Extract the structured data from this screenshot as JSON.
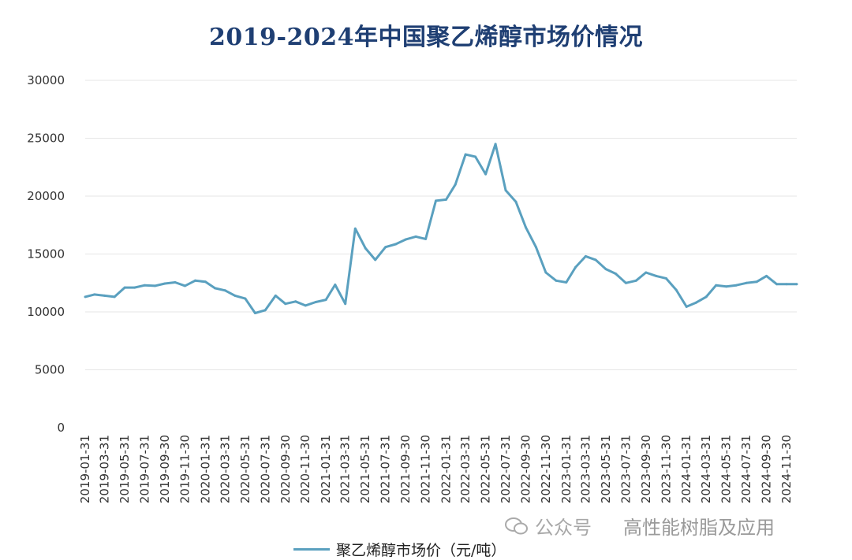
{
  "chart_data": {
    "type": "line",
    "title": "2019-2024年中国聚乙烯醇市场价情况",
    "xlabel": "",
    "ylabel": "",
    "ylim": [
      0,
      30000
    ],
    "yticks": [
      0,
      5000,
      10000,
      15000,
      20000,
      25000,
      30000
    ],
    "grid": true,
    "legend_position": "bottom",
    "x_tick_labels": [
      "2019-01-31",
      "2019-03-31",
      "2019-05-31",
      "2019-07-31",
      "2019-09-30",
      "2019-11-30",
      "2020-01-31",
      "2020-03-31",
      "2020-05-31",
      "2020-07-31",
      "2020-09-30",
      "2020-11-30",
      "2021-01-31",
      "2021-03-31",
      "2021-05-31",
      "2021-07-31",
      "2021-09-30",
      "2021-11-30",
      "2022-01-31",
      "2022-03-31",
      "2022-05-31",
      "2022-07-31",
      "2022-09-30",
      "2022-11-30",
      "2023-01-31",
      "2023-03-31",
      "2023-05-31",
      "2023-07-31",
      "2023-09-30",
      "2023-11-30",
      "2024-01-31",
      "2024-03-31",
      "2024-05-31",
      "2024-07-31",
      "2024-09-30",
      "2024-11-30"
    ],
    "series": [
      {
        "name": "聚乙烯醇市场价（元/吨）",
        "color": "#5aa0bf",
        "x": [
          "2019-01-31",
          "2019-02-28",
          "2019-03-31",
          "2019-04-30",
          "2019-05-31",
          "2019-06-30",
          "2019-07-31",
          "2019-08-31",
          "2019-09-30",
          "2019-10-31",
          "2019-11-30",
          "2019-12-31",
          "2020-01-31",
          "2020-02-29",
          "2020-03-31",
          "2020-04-30",
          "2020-05-31",
          "2020-06-30",
          "2020-07-31",
          "2020-08-31",
          "2020-09-30",
          "2020-10-31",
          "2020-11-30",
          "2020-12-31",
          "2021-01-31",
          "2021-02-28",
          "2021-03-31",
          "2021-04-30",
          "2021-05-31",
          "2021-06-30",
          "2021-07-31",
          "2021-08-31",
          "2021-09-30",
          "2021-10-31",
          "2021-11-30",
          "2021-12-31",
          "2022-01-31",
          "2022-02-28",
          "2022-03-31",
          "2022-04-30",
          "2022-05-31",
          "2022-06-30",
          "2022-07-31",
          "2022-08-31",
          "2022-09-30",
          "2022-10-31",
          "2022-11-30",
          "2022-12-31",
          "2023-01-31",
          "2023-02-28",
          "2023-03-31",
          "2023-04-30",
          "2023-05-31",
          "2023-06-30",
          "2023-07-31",
          "2023-08-31",
          "2023-09-30",
          "2023-10-31",
          "2023-11-30",
          "2023-12-31",
          "2024-01-31",
          "2024-02-29",
          "2024-03-31",
          "2024-04-30",
          "2024-05-31",
          "2024-06-30",
          "2024-07-31",
          "2024-08-31",
          "2024-09-30",
          "2024-10-31",
          "2024-11-30",
          "2024-12-31"
        ],
        "values": [
          11300,
          11500,
          11400,
          11300,
          12100,
          12100,
          12300,
          12250,
          12450,
          12550,
          12250,
          12700,
          12600,
          12050,
          11850,
          11400,
          11150,
          9900,
          10150,
          11400,
          10700,
          10900,
          10550,
          10850,
          11050,
          12350,
          10700,
          17200,
          15500,
          14500,
          15600,
          15850,
          16250,
          16500,
          16300,
          19600,
          19700,
          21000,
          23600,
          23400,
          21900,
          24500,
          20500,
          19500,
          17300,
          15600,
          13400,
          12700,
          12550,
          13850,
          14800,
          14500,
          13700,
          13300,
          12500,
          12700,
          13400,
          13100,
          12900,
          11900,
          10450,
          10800,
          11300,
          12300,
          12200,
          12300,
          12500,
          12600,
          13100,
          12400,
          12400,
          12400
        ]
      }
    ]
  },
  "legend": {
    "label": "聚乙烯醇市场价（元/吨）"
  },
  "watermark": {
    "prefix": "公众号",
    "text": "高性能树脂及应用"
  },
  "colors": {
    "line": "#5aa0bf",
    "title": "#1f3f73",
    "grid": "#e6e6e6"
  }
}
